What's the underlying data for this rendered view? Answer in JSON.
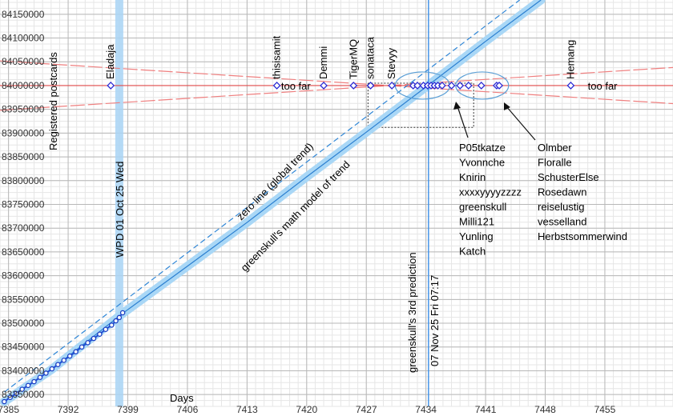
{
  "chart_data": {
    "type": "line",
    "title": "",
    "ylabel": "Registered postcards",
    "xlabel": "Days",
    "xlim": [
      7384,
      7463
    ],
    "ylim": [
      83325000,
      84180000
    ],
    "grid": true,
    "x_ticks": [
      7385,
      7392,
      7399,
      7406,
      7413,
      7420,
      7427,
      7434,
      7441,
      7448,
      7455
    ],
    "y_ticks": [
      83350000,
      83400000,
      83450000,
      83500000,
      83550000,
      83600000,
      83650000,
      83700000,
      83750000,
      83800000,
      83850000,
      83900000,
      83950000,
      84000000,
      84050000,
      84100000,
      84150000
    ],
    "target_value": 84000000,
    "series": [
      {
        "kind": "observed",
        "values": [
          [
            7384.5,
            83335000
          ],
          [
            7385.2,
            83344000
          ],
          [
            7385.9,
            83352000
          ],
          [
            7386.6,
            83361000
          ],
          [
            7387.3,
            83369000
          ],
          [
            7388.0,
            83377000
          ],
          [
            7388.7,
            83386000
          ],
          [
            7389.4,
            83395000
          ],
          [
            7390.1,
            83404000
          ],
          [
            7390.8,
            83413000
          ],
          [
            7391.5,
            83422000
          ],
          [
            7392.2,
            83431000
          ],
          [
            7392.9,
            83440000
          ],
          [
            7393.6,
            83450000
          ],
          [
            7394.3,
            83459000
          ],
          [
            7395.0,
            83468000
          ],
          [
            7395.7,
            83477000
          ],
          [
            7396.4,
            83487000
          ],
          [
            7397.1,
            83496000
          ],
          [
            7397.6,
            83505000
          ],
          [
            7398.0,
            83512000
          ],
          [
            7398.4,
            83522000
          ]
        ]
      },
      {
        "name": "greenskull's math model of trend",
        "kind": "model",
        "values": [
          [
            7384.5,
            83335000
          ],
          [
            7390,
            83402000
          ],
          [
            7398.5,
            83522000
          ],
          [
            7406,
            83620000
          ],
          [
            7413,
            83712000
          ],
          [
            7420,
            83808000
          ],
          [
            7427,
            83902000
          ],
          [
            7434,
            83997000
          ],
          [
            7441,
            84093000
          ],
          [
            7447.5,
            84180000
          ]
        ]
      },
      {
        "name": "zero line (global trend)",
        "kind": "global-trend",
        "values": [
          [
            7384.5,
            83355000
          ],
          [
            7445,
            84180000
          ]
        ]
      }
    ],
    "annotations": {
      "wpd_label": "WPD 01 Oct 25 Wed",
      "wpd_x": 7398,
      "prediction_label_1": "greenskull's 3rd prediction",
      "prediction_label_2": "07 Nov 25 Fri 07:17",
      "prediction_x": 7434.3,
      "zero_line_label": "zero line (global trend)",
      "model_label": "greenskull's math model of trend",
      "too_far_left": "too far",
      "too_far_right": "too far"
    },
    "guesses": [
      {
        "name": "Eladaja",
        "x": 7397.0
      },
      {
        "name": "thisisamit",
        "x": 7416.5
      },
      {
        "name": "Demmi",
        "x": 7422.0
      },
      {
        "name": "TigerMQ",
        "x": 7425.5
      },
      {
        "name": "sonataca",
        "x": 7427.5
      },
      {
        "name": "Stevyy",
        "x": 7430.0
      },
      {
        "name": "",
        "x": 7432.5
      },
      {
        "name": "",
        "x": 7433.0
      },
      {
        "name": "",
        "x": 7433.7
      },
      {
        "name": "",
        "x": 7434.2
      },
      {
        "name": "",
        "x": 7434.6
      },
      {
        "name": "",
        "x": 7435.0
      },
      {
        "name": "",
        "x": 7435.4
      },
      {
        "name": "",
        "x": 7435.9
      },
      {
        "name": "",
        "x": 7437.0
      },
      {
        "name": "",
        "x": 7438.0
      },
      {
        "name": "",
        "x": 7439.0
      },
      {
        "name": "",
        "x": 7440.5
      },
      {
        "name": "",
        "x": 7442.3
      },
      {
        "name": "",
        "x": 7442.6
      },
      {
        "name": "Hemang",
        "x": 7451.0
      }
    ],
    "group_left": [
      "P05tkatze",
      "Yvonnche",
      "Knirin",
      "xxxxyyyyzzzz",
      "greenskull",
      "Milli121",
      "Yunling",
      "Katch"
    ],
    "group_right": [
      "Olmber",
      "Floralle",
      "SchusterElse",
      "Rosedawn",
      "reiselustig",
      "vesselland",
      "Herbstsommerwind"
    ]
  }
}
